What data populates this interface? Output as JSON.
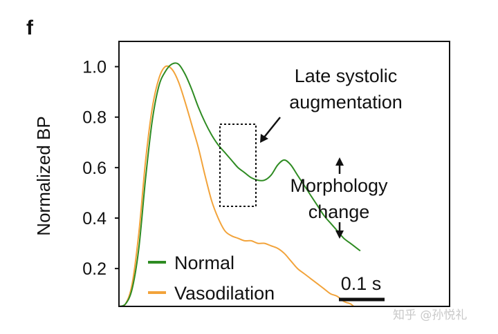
{
  "panel_label": "f",
  "watermark": "知乎 @孙悦礼",
  "chart_data": {
    "type": "line",
    "ylabel": "Normalized BP",
    "xlabel": "",
    "xlim": [
      0,
      1.0
    ],
    "ylim": [
      0.05,
      1.1
    ],
    "yticks": [
      {
        "value": 0.2,
        "label": "0.2"
      },
      {
        "value": 0.4,
        "label": "0.4"
      },
      {
        "value": 0.6,
        "label": "0.6"
      },
      {
        "value": 0.8,
        "label": "0.8"
      },
      {
        "value": 1.0,
        "label": "1.0"
      }
    ],
    "x_unit": "s",
    "scale_bar": {
      "length": 0.1,
      "label": "0.1 s"
    },
    "series": [
      {
        "name": "Normal",
        "color": "#2e8b22",
        "points": [
          [
            0,
            0.05
          ],
          [
            0.02,
            0.06
          ],
          [
            0.04,
            0.12
          ],
          [
            0.06,
            0.28
          ],
          [
            0.08,
            0.55
          ],
          [
            0.1,
            0.78
          ],
          [
            0.12,
            0.92
          ],
          [
            0.14,
            0.98
          ],
          [
            0.16,
            1.01
          ],
          [
            0.18,
            1.01
          ],
          [
            0.2,
            0.97
          ],
          [
            0.22,
            0.91
          ],
          [
            0.24,
            0.84
          ],
          [
            0.26,
            0.78
          ],
          [
            0.28,
            0.73
          ],
          [
            0.3,
            0.69
          ],
          [
            0.32,
            0.66
          ],
          [
            0.34,
            0.63
          ],
          [
            0.36,
            0.6
          ],
          [
            0.38,
            0.58
          ],
          [
            0.4,
            0.56
          ],
          [
            0.42,
            0.55
          ],
          [
            0.44,
            0.55
          ],
          [
            0.46,
            0.57
          ],
          [
            0.48,
            0.61
          ],
          [
            0.5,
            0.63
          ],
          [
            0.52,
            0.61
          ],
          [
            0.54,
            0.57
          ],
          [
            0.56,
            0.53
          ],
          [
            0.58,
            0.49
          ],
          [
            0.6,
            0.45
          ],
          [
            0.62,
            0.41
          ],
          [
            0.64,
            0.38
          ],
          [
            0.66,
            0.35
          ],
          [
            0.68,
            0.32
          ],
          [
            0.7,
            0.3
          ],
          [
            0.72,
            0.28
          ],
          [
            0.73,
            0.27
          ]
        ]
      },
      {
        "name": "Vasodilation",
        "color": "#f2a33a",
        "points": [
          [
            0,
            0.05
          ],
          [
            0.02,
            0.06
          ],
          [
            0.04,
            0.14
          ],
          [
            0.06,
            0.34
          ],
          [
            0.08,
            0.62
          ],
          [
            0.1,
            0.83
          ],
          [
            0.12,
            0.95
          ],
          [
            0.14,
            1.0
          ],
          [
            0.16,
            0.99
          ],
          [
            0.18,
            0.94
          ],
          [
            0.2,
            0.86
          ],
          [
            0.22,
            0.77
          ],
          [
            0.24,
            0.68
          ],
          [
            0.26,
            0.57
          ],
          [
            0.28,
            0.47
          ],
          [
            0.3,
            0.4
          ],
          [
            0.32,
            0.35
          ],
          [
            0.34,
            0.33
          ],
          [
            0.36,
            0.32
          ],
          [
            0.38,
            0.31
          ],
          [
            0.4,
            0.31
          ],
          [
            0.42,
            0.3
          ],
          [
            0.44,
            0.3
          ],
          [
            0.46,
            0.29
          ],
          [
            0.48,
            0.28
          ],
          [
            0.5,
            0.26
          ],
          [
            0.52,
            0.23
          ],
          [
            0.54,
            0.2
          ],
          [
            0.56,
            0.18
          ],
          [
            0.58,
            0.16
          ],
          [
            0.6,
            0.14
          ],
          [
            0.62,
            0.12
          ],
          [
            0.64,
            0.1
          ],
          [
            0.66,
            0.09
          ],
          [
            0.68,
            0.07
          ],
          [
            0.7,
            0.06
          ],
          [
            0.71,
            0.05
          ]
        ]
      }
    ],
    "annotations": [
      {
        "id": "late-systolic",
        "lines": [
          "Late systolic",
          "augmentation"
        ]
      },
      {
        "id": "morphology",
        "lines": [
          "Morphology",
          "change"
        ]
      }
    ],
    "legend": {
      "placement": "bottom-left"
    }
  }
}
